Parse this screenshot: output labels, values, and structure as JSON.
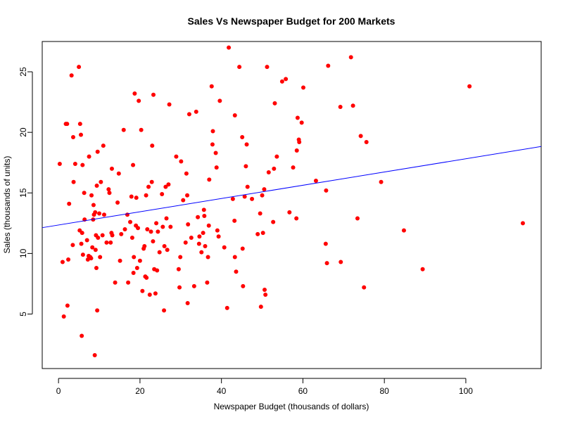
{
  "chart_data": {
    "type": "scatter",
    "title": "Sales Vs Newspaper Budget for 200 Markets",
    "xlabel": "Newspaper Budget (thousands of dollars)",
    "ylabel": "Sales (thousands of units)",
    "xlim": [
      -4,
      118.5
    ],
    "ylim": [
      0.5,
      27.5
    ],
    "xticks": [
      0,
      20,
      40,
      60,
      80,
      100
    ],
    "yticks": [
      5,
      10,
      15,
      20,
      25
    ],
    "grid": false,
    "legend": "none",
    "colors": {
      "points": "#ff0000",
      "fit_line": "#0000ff"
    },
    "regression_line": {
      "intercept": 12.35,
      "slope": 0.0547
    },
    "points": [
      [
        0.3,
        17.4
      ],
      [
        1.0,
        9.3
      ],
      [
        1.3,
        4.8
      ],
      [
        1.8,
        20.7
      ],
      [
        2.1,
        20.7
      ],
      [
        2.2,
        5.7
      ],
      [
        2.4,
        9.5
      ],
      [
        2.6,
        14.1
      ],
      [
        3.2,
        24.7
      ],
      [
        3.5,
        10.7
      ],
      [
        3.6,
        19.6
      ],
      [
        3.7,
        15.9
      ],
      [
        4.1,
        17.4
      ],
      [
        5.0,
        25.4
      ],
      [
        5.2,
        11.9
      ],
      [
        5.3,
        20.7
      ],
      [
        5.5,
        19.8
      ],
      [
        5.6,
        10.8
      ],
      [
        5.7,
        3.2
      ],
      [
        5.8,
        11.7
      ],
      [
        5.9,
        17.3
      ],
      [
        6.0,
        9.9
      ],
      [
        6.3,
        15.0
      ],
      [
        6.4,
        12.8
      ],
      [
        7.0,
        11.1
      ],
      [
        7.2,
        9.5
      ],
      [
        7.4,
        9.8
      ],
      [
        7.5,
        18.0
      ],
      [
        7.8,
        9.7
      ],
      [
        8.0,
        9.6
      ],
      [
        8.1,
        14.8
      ],
      [
        8.3,
        10.5
      ],
      [
        8.5,
        12.8
      ],
      [
        8.6,
        14.0
      ],
      [
        8.7,
        13.2
      ],
      [
        8.9,
        1.6
      ],
      [
        9.0,
        13.4
      ],
      [
        9.1,
        10.3
      ],
      [
        9.2,
        11.5
      ],
      [
        9.3,
        8.8
      ],
      [
        9.4,
        15.6
      ],
      [
        9.5,
        5.3
      ],
      [
        9.6,
        18.4
      ],
      [
        9.7,
        11.3
      ],
      [
        10.0,
        13.3
      ],
      [
        10.2,
        9.7
      ],
      [
        10.4,
        15.9
      ],
      [
        10.8,
        11.5
      ],
      [
        11.0,
        18.9
      ],
      [
        11.2,
        13.2
      ],
      [
        11.8,
        10.9
      ],
      [
        12.3,
        15.3
      ],
      [
        12.5,
        15.0
      ],
      [
        12.8,
        10.9
      ],
      [
        13.0,
        11.7
      ],
      [
        13.2,
        11.5
      ],
      [
        13.1,
        17.0
      ],
      [
        13.9,
        7.6
      ],
      [
        14.5,
        14.2
      ],
      [
        14.8,
        16.6
      ],
      [
        15.1,
        9.4
      ],
      [
        15.4,
        11.6
      ],
      [
        16.0,
        20.2
      ],
      [
        16.3,
        12.0
      ],
      [
        16.9,
        13.2
      ],
      [
        17.1,
        7.6
      ],
      [
        17.6,
        12.6
      ],
      [
        17.9,
        14.7
      ],
      [
        18.1,
        11.3
      ],
      [
        18.3,
        17.3
      ],
      [
        18.4,
        8.4
      ],
      [
        18.5,
        9.7
      ],
      [
        18.7,
        23.2
      ],
      [
        19.0,
        12.3
      ],
      [
        19.1,
        14.6
      ],
      [
        19.3,
        8.8
      ],
      [
        19.5,
        12.1
      ],
      [
        19.7,
        22.6
      ],
      [
        20.0,
        9.4
      ],
      [
        20.3,
        20.2
      ],
      [
        20.6,
        6.9
      ],
      [
        20.9,
        10.4
      ],
      [
        21.1,
        10.6
      ],
      [
        21.3,
        8.1
      ],
      [
        21.5,
        14.8
      ],
      [
        21.6,
        8.0
      ],
      [
        21.8,
        12.0
      ],
      [
        22.1,
        15.5
      ],
      [
        22.4,
        6.6
      ],
      [
        22.7,
        11.8
      ],
      [
        22.9,
        15.9
      ],
      [
        23.0,
        18.9
      ],
      [
        23.2,
        11.0
      ],
      [
        23.3,
        23.1
      ],
      [
        23.5,
        8.7
      ],
      [
        23.8,
        6.7
      ],
      [
        24.0,
        12.5
      ],
      [
        24.2,
        8.6
      ],
      [
        24.4,
        11.8
      ],
      [
        24.8,
        10.1
      ],
      [
        25.4,
        14.9
      ],
      [
        25.6,
        12.2
      ],
      [
        25.9,
        5.3
      ],
      [
        26.0,
        10.6
      ],
      [
        26.3,
        15.5
      ],
      [
        26.5,
        12.9
      ],
      [
        26.7,
        10.3
      ],
      [
        27.0,
        15.7
      ],
      [
        27.2,
        22.3
      ],
      [
        27.5,
        12.2
      ],
      [
        28.9,
        18.0
      ],
      [
        29.5,
        8.7
      ],
      [
        29.7,
        7.2
      ],
      [
        29.9,
        9.7
      ],
      [
        30.1,
        17.6
      ],
      [
        30.6,
        14.4
      ],
      [
        31.2,
        10.9
      ],
      [
        31.4,
        16.6
      ],
      [
        31.6,
        14.8
      ],
      [
        31.7,
        5.9
      ],
      [
        31.8,
        12.4
      ],
      [
        32.1,
        21.5
      ],
      [
        32.6,
        11.3
      ],
      [
        33.3,
        7.3
      ],
      [
        33.8,
        21.7
      ],
      [
        34.2,
        13.0
      ],
      [
        34.5,
        10.8
      ],
      [
        34.6,
        11.4
      ],
      [
        35.1,
        10.1
      ],
      [
        35.5,
        11.7
      ],
      [
        35.7,
        13.6
      ],
      [
        35.8,
        13.1
      ],
      [
        36.0,
        10.6
      ],
      [
        36.5,
        7.6
      ],
      [
        36.7,
        9.7
      ],
      [
        36.9,
        12.3
      ],
      [
        37.0,
        16.1
      ],
      [
        37.6,
        23.8
      ],
      [
        37.8,
        19.0
      ],
      [
        37.9,
        20.1
      ],
      [
        38.6,
        18.3
      ],
      [
        38.8,
        17.1
      ],
      [
        39.0,
        11.9
      ],
      [
        39.3,
        11.4
      ],
      [
        39.6,
        22.6
      ],
      [
        40.7,
        10.5
      ],
      [
        41.4,
        5.5
      ],
      [
        41.8,
        27.0
      ],
      [
        42.8,
        14.5
      ],
      [
        43.2,
        12.7
      ],
      [
        43.3,
        9.7
      ],
      [
        43.6,
        8.5
      ],
      [
        43.3,
        21.4
      ],
      [
        44.4,
        25.4
      ],
      [
        45.1,
        19.6
      ],
      [
        45.2,
        10.4
      ],
      [
        45.3,
        7.3
      ],
      [
        45.7,
        14.7
      ],
      [
        46.0,
        17.2
      ],
      [
        46.2,
        19.0
      ],
      [
        46.4,
        15.5
      ],
      [
        47.5,
        14.5
      ],
      [
        48.9,
        11.6
      ],
      [
        49.5,
        13.3
      ],
      [
        49.7,
        5.6
      ],
      [
        50.0,
        14.8
      ],
      [
        50.2,
        11.7
      ],
      [
        50.5,
        15.3
      ],
      [
        50.6,
        7.0
      ],
      [
        50.8,
        6.6
      ],
      [
        51.2,
        25.4
      ],
      [
        51.6,
        16.7
      ],
      [
        52.7,
        12.6
      ],
      [
        52.9,
        17.0
      ],
      [
        53.1,
        22.4
      ],
      [
        53.6,
        18.0
      ],
      [
        54.9,
        24.2
      ],
      [
        55.8,
        24.4
      ],
      [
        56.7,
        13.4
      ],
      [
        57.6,
        17.1
      ],
      [
        58.4,
        12.9
      ],
      [
        58.5,
        18.5
      ],
      [
        58.7,
        21.2
      ],
      [
        59.0,
        19.4
      ],
      [
        59.1,
        19.2
      ],
      [
        59.7,
        20.8
      ],
      [
        60.1,
        23.7
      ],
      [
        63.2,
        16.0
      ],
      [
        65.6,
        10.8
      ],
      [
        65.7,
        15.2
      ],
      [
        65.9,
        9.2
      ],
      [
        66.2,
        25.5
      ],
      [
        69.2,
        22.1
      ],
      [
        69.3,
        9.3
      ],
      [
        71.8,
        26.2
      ],
      [
        72.3,
        22.2
      ],
      [
        73.4,
        12.9
      ],
      [
        74.2,
        19.7
      ],
      [
        75.0,
        7.2
      ],
      [
        75.6,
        19.2
      ],
      [
        79.2,
        15.9
      ],
      [
        84.8,
        11.9
      ],
      [
        89.4,
        8.7
      ],
      [
        100.9,
        23.8
      ],
      [
        114.0,
        12.5
      ]
    ]
  }
}
